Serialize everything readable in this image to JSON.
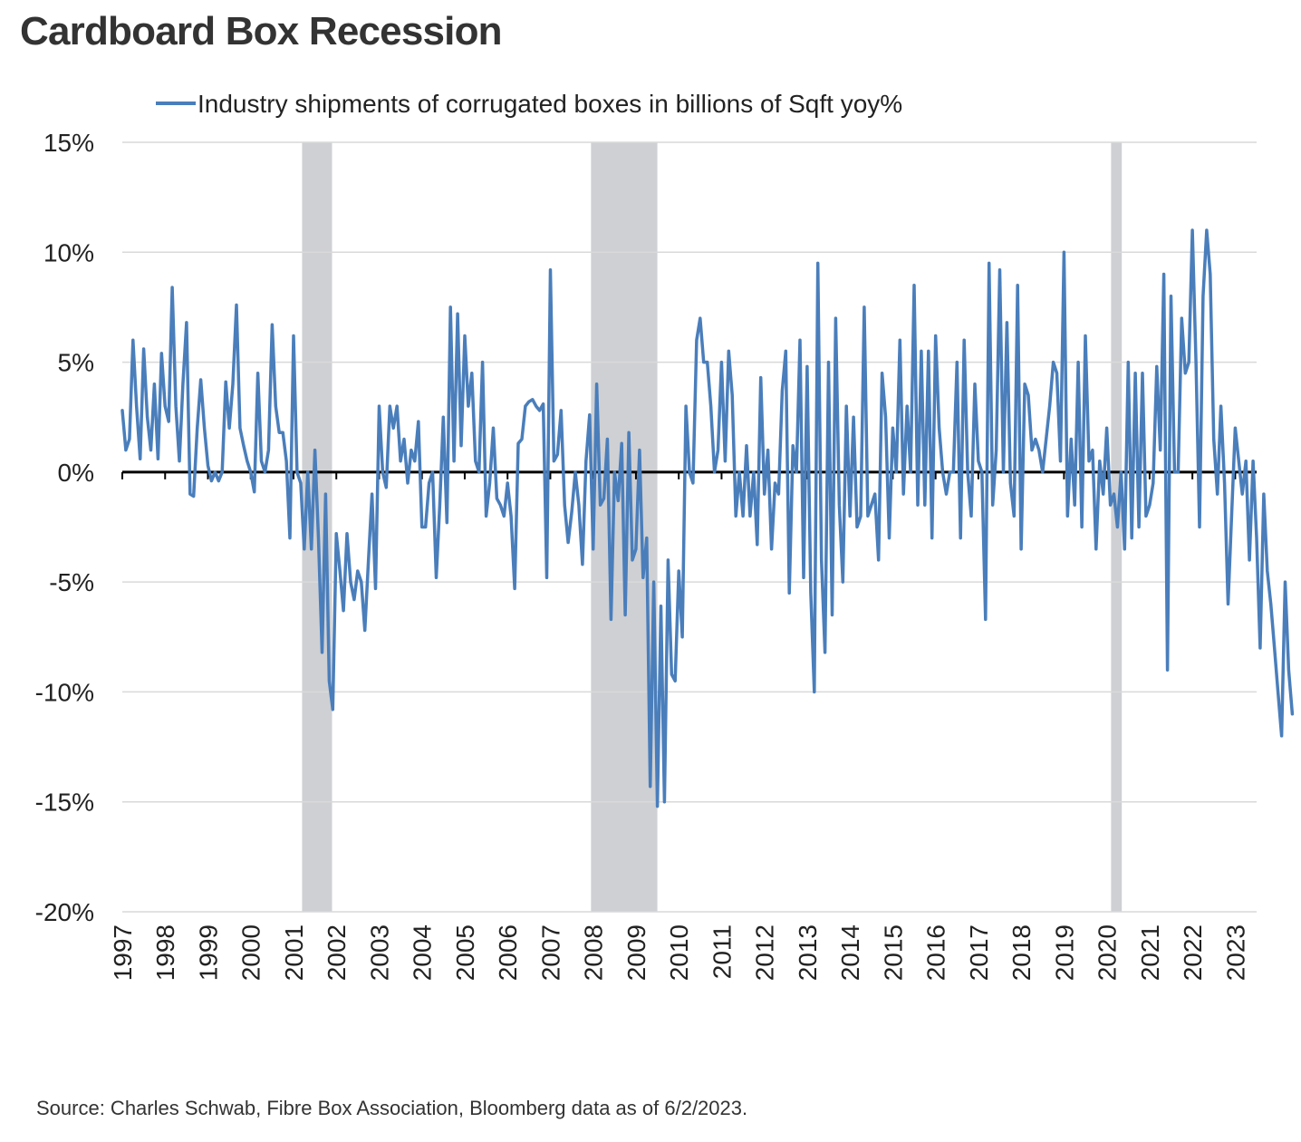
{
  "title": "Cardboard Box Recession",
  "source": "Source: Charles Schwab, Fibre Box Association, Bloomberg data as of 6/2/2023.",
  "chart_data": {
    "type": "line",
    "series": [
      {
        "name": "Industry shipments of corrugated boxes in billions of Sqft yoy%",
        "color": "#4a7ebb",
        "x_start": 1997.0,
        "x_step": 0.083333,
        "values": [
          2.8,
          1.0,
          1.5,
          6.0,
          3.0,
          0.6,
          5.6,
          2.5,
          1.0,
          4.0,
          0.6,
          5.4,
          3.0,
          2.3,
          8.4,
          3.0,
          0.5,
          4.0,
          6.8,
          -1.0,
          -1.1,
          2.0,
          4.2,
          2.0,
          0.3,
          -0.4,
          0.0,
          -0.4,
          0.0,
          4.1,
          2.0,
          4.0,
          7.6,
          2.0,
          1.2,
          0.5,
          0.0,
          -0.9,
          4.5,
          0.5,
          0.0,
          1.0,
          6.7,
          3.0,
          1.8,
          1.8,
          0.5,
          -3.0,
          6.2,
          0.0,
          -0.5,
          -3.5,
          0.0,
          -3.5,
          1.0,
          -3.0,
          -8.2,
          -1.0,
          -9.5,
          -10.8,
          -2.8,
          -4.5,
          -6.3,
          -2.8,
          -5.0,
          -5.8,
          -4.5,
          -5.0,
          -7.2,
          -4.0,
          -1.0,
          -5.3,
          3.0,
          0.0,
          -0.7,
          3.0,
          2.0,
          3.0,
          0.5,
          1.5,
          -0.5,
          1.0,
          0.5,
          2.3,
          -2.5,
          -2.5,
          -0.5,
          0.0,
          -4.8,
          -1.5,
          2.5,
          -2.3,
          7.5,
          0.5,
          7.2,
          1.2,
          6.2,
          3.0,
          4.5,
          0.5,
          0.0,
          5.0,
          -2.0,
          -0.5,
          2.0,
          -1.2,
          -1.5,
          -2.0,
          -0.5,
          -2.0,
          -5.3,
          1.3,
          1.5,
          3.0,
          3.2,
          3.3,
          3.0,
          2.8,
          3.1,
          -4.8,
          9.2,
          0.5,
          0.8,
          2.8,
          -1.5,
          -3.2,
          -1.8,
          0.0,
          -1.5,
          -4.2,
          0.5,
          2.6,
          -3.5,
          4.0,
          -1.5,
          -1.2,
          1.5,
          -6.7,
          0.0,
          -1.3,
          1.3,
          -6.5,
          1.8,
          -4.0,
          -3.5,
          1.0,
          -4.8,
          -3.0,
          -14.3,
          -5.0,
          -15.2,
          -6.1,
          -15.0,
          -4.0,
          -9.2,
          -9.5,
          -4.5,
          -7.5,
          3.0,
          0.0,
          -0.5,
          6.0,
          7.0,
          5.0,
          5.0,
          3.0,
          0.0,
          1.0,
          5.0,
          0.5,
          5.5,
          3.5,
          -2.0,
          0.0,
          -2.0,
          1.2,
          -2.0,
          0.0,
          -3.3,
          4.3,
          -1.0,
          1.0,
          -3.5,
          -0.5,
          -1.0,
          3.7,
          5.5,
          -5.5,
          1.2,
          0.0,
          6.0,
          -4.8,
          4.8,
          -5.5,
          -10.0,
          9.5,
          -4.0,
          -8.2,
          5.0,
          -6.5,
          7.0,
          -1.5,
          -5.0,
          3.0,
          -2.0,
          2.5,
          -2.5,
          -2.0,
          7.5,
          -2.0,
          -1.5,
          -1.0,
          -4.0,
          4.5,
          2.5,
          -3.0,
          2.0,
          0.0,
          6.0,
          -1.0,
          3.0,
          0.0,
          8.5,
          -1.5,
          5.5,
          -1.5,
          5.5,
          -3.0,
          6.2,
          2.0,
          0.0,
          -1.0,
          0.0,
          0.0,
          5.0,
          -3.0,
          6.0,
          0.0,
          -2.0,
          4.0,
          0.5,
          0.0,
          -6.7,
          9.5,
          -1.5,
          1.0,
          9.2,
          0.0,
          6.8,
          -0.5,
          -2.0,
          8.5,
          -3.5,
          4.0,
          3.5,
          1.0,
          1.5,
          1.0,
          0.0,
          1.5,
          3.0,
          5.0,
          4.5,
          0.5,
          10.0,
          -2.0,
          1.5,
          -1.5,
          5.0,
          -2.5,
          6.2,
          0.5,
          1.0,
          -3.5,
          0.5,
          -1.0,
          2.0,
          -1.5,
          -1.0,
          -2.5,
          0.0,
          -3.5,
          5.0,
          -3.0,
          4.5,
          -2.5,
          4.5,
          -2.0,
          -1.5,
          -0.5,
          4.8,
          1.0,
          9.0,
          -9.0,
          8.0,
          0.0,
          0.0,
          7.0,
          4.5,
          5.0,
          11.0,
          5.0,
          -2.5,
          8.0,
          11.0,
          9.0,
          1.5,
          -1.0,
          3.0,
          -0.5,
          -6.0,
          -2.0,
          2.0,
          0.5,
          -1.0,
          0.5,
          -4.0,
          0.5,
          -3.0,
          -8.0,
          -1.0,
          -4.5,
          -6.0,
          -8.0,
          -10.0,
          -12.0,
          -5.0,
          -9.0,
          -11.0
        ]
      }
    ],
    "recession_shading": [
      [
        2001.2,
        2001.9
      ],
      [
        2007.95,
        2009.5
      ],
      [
        2020.1,
        2020.35
      ]
    ],
    "xlim": [
      1997,
      2023.5
    ],
    "ylim": [
      -20,
      15
    ],
    "ytick_values": [
      15,
      10,
      5,
      0,
      -5,
      -10,
      -15,
      -20
    ],
    "ytick_labels": [
      "15%",
      "10%",
      "5%",
      "0%",
      "-5%",
      "-10%",
      "-15%",
      "-20%"
    ],
    "xtick_labels": [
      "1997",
      "1998",
      "1999",
      "2000",
      "2001",
      "2002",
      "2003",
      "2004",
      "2005",
      "2006",
      "2007",
      "2008",
      "2009",
      "2010",
      "2011",
      "2012",
      "2013",
      "2014",
      "2015",
      "2016",
      "2017",
      "2018",
      "2019",
      "2020",
      "2021",
      "2022",
      "2023"
    ],
    "grid": true,
    "legend_position": "top-center",
    "colors": {
      "line": "#4a7ebb",
      "recession": "#cfd0d3",
      "grid": "#d9d9d9",
      "zero_line": "#000000"
    }
  }
}
